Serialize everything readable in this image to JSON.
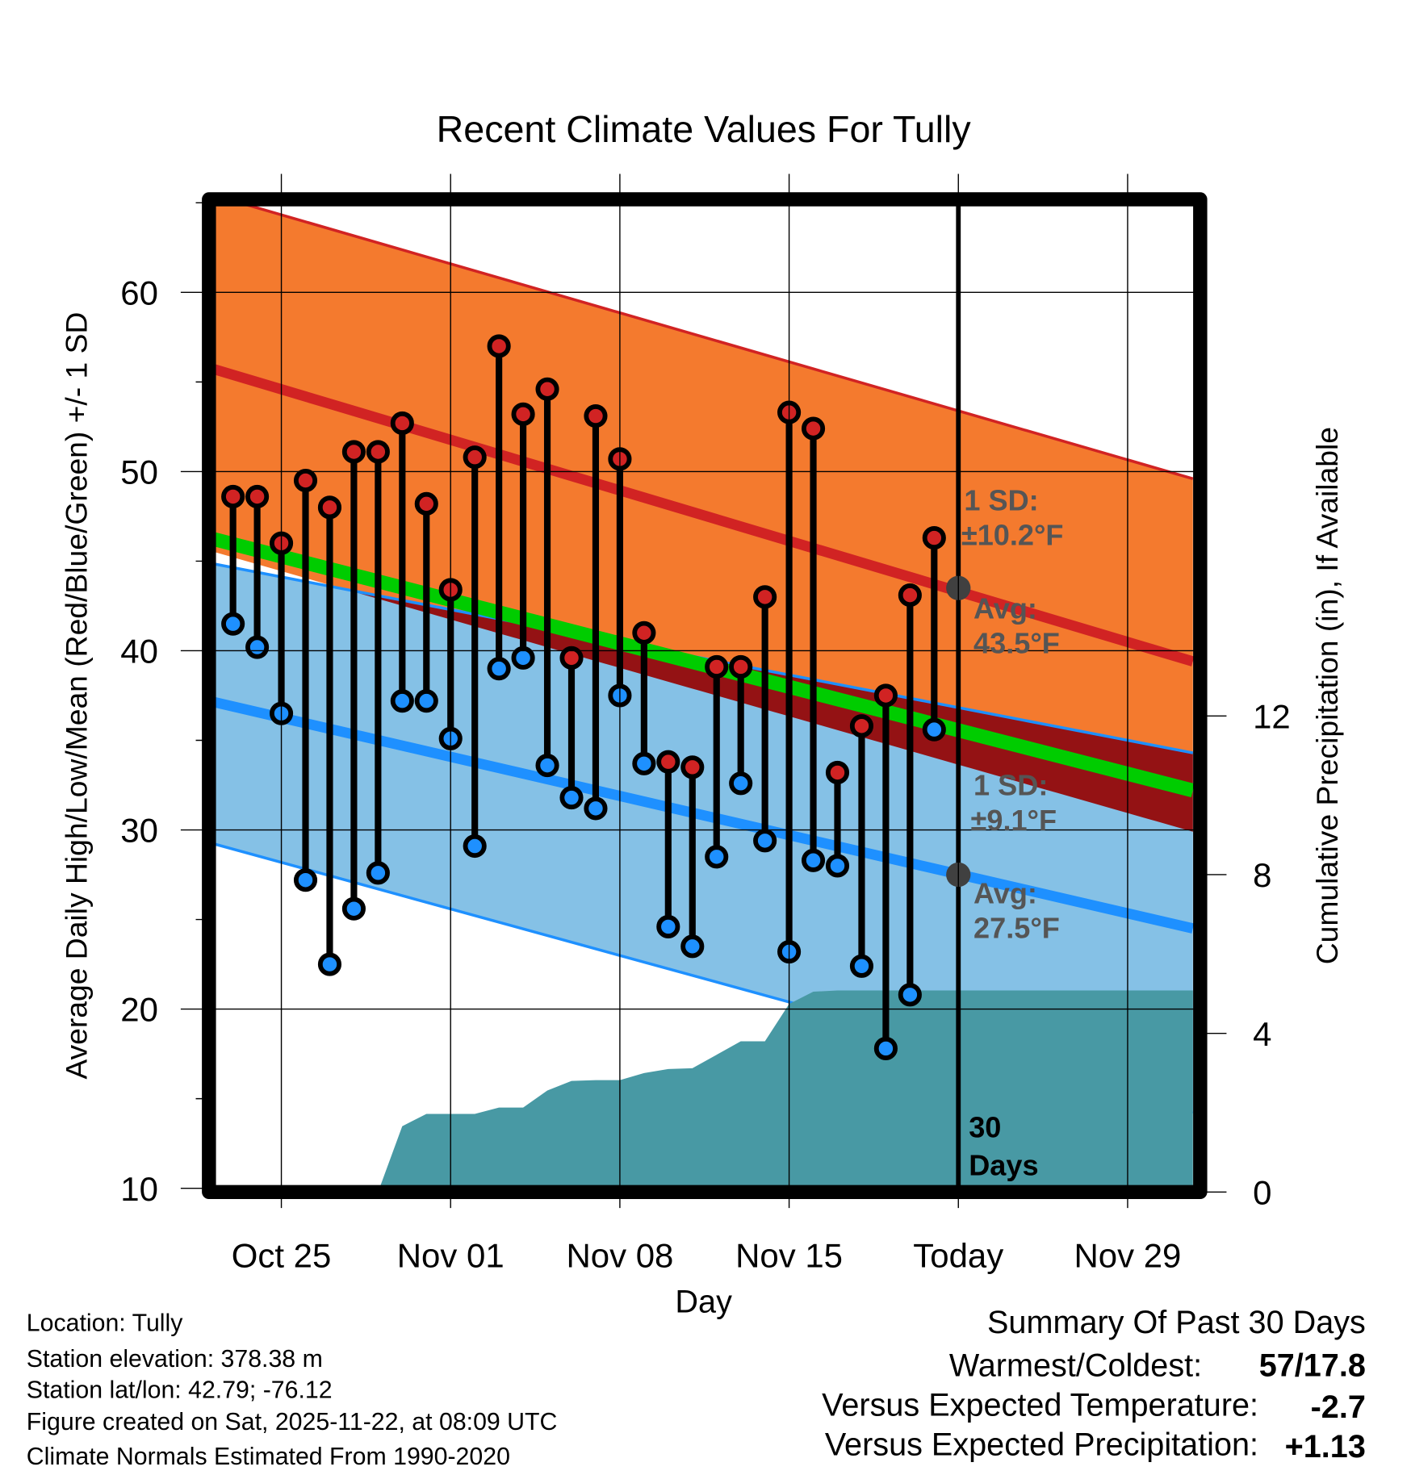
{
  "chart_data": {
    "type": "line",
    "title": "Recent Climate Values For Tully",
    "xlabel": "Day",
    "ylabel": "Average Daily High/Low/Mean (Red/Blue/Green) +/- 1 SD",
    "y2label": "Cumulative Precipitation (in), If Available",
    "x_units": "days relative to Oct 25",
    "xlim": [
      -3,
      37.7
    ],
    "ylim": [
      10,
      65.2
    ],
    "y2lim": [
      0,
      13
    ],
    "x_ticks": [
      {
        "x": 0,
        "label": "Oct 25"
      },
      {
        "x": 7,
        "label": "Nov 01"
      },
      {
        "x": 14,
        "label": "Nov 08"
      },
      {
        "x": 21,
        "label": "Nov 15"
      },
      {
        "x": 28,
        "label": "Today"
      },
      {
        "x": 35,
        "label": "Nov 29"
      }
    ],
    "y_ticks": [
      "10",
      "20",
      "30",
      "40",
      "50",
      "60"
    ],
    "y2_ticks": [
      "0",
      "4",
      "8",
      "12"
    ],
    "grid": true,
    "days": [
      -2,
      -1,
      0,
      1,
      2,
      3,
      4,
      5,
      6,
      7,
      8,
      9,
      10,
      11,
      12,
      13,
      14,
      15,
      16,
      17,
      18,
      19,
      20,
      21,
      22,
      23,
      24,
      25,
      26,
      27
    ],
    "highs": [
      48.6,
      48.6,
      46.0,
      49.5,
      48.0,
      51.1,
      51.1,
      52.7,
      48.2,
      43.4,
      50.8,
      57.0,
      53.2,
      54.6,
      39.6,
      53.1,
      50.7,
      41.0,
      33.8,
      33.5,
      39.1,
      39.1,
      43.0,
      53.3,
      52.4,
      33.2,
      35.8,
      37.5,
      43.1,
      46.3
    ],
    "lows": [
      41.5,
      40.2,
      36.5,
      27.2,
      22.5,
      25.6,
      27.6,
      37.2,
      37.2,
      35.1,
      29.1,
      39.0,
      39.6,
      33.6,
      31.8,
      31.2,
      37.5,
      33.7,
      24.6,
      23.5,
      28.5,
      32.6,
      29.4,
      23.2,
      28.3,
      28.0,
      22.4,
      17.8,
      20.8,
      35.6
    ],
    "precip_cumulative": [
      0,
      0,
      0,
      0,
      0,
      0,
      0,
      1.66,
      1.97,
      1.97,
      1.97,
      2.13,
      2.13,
      2.56,
      2.8,
      2.82,
      2.82,
      3.0,
      3.1,
      3.12,
      3.46,
      3.8,
      3.8,
      4.74,
      5.05,
      5.08,
      5.08,
      5.08,
      5.08,
      5.08
    ],
    "normals_at_xlim": {
      "high_upper": [
        65.5,
        49.6
      ],
      "high_mean": [
        55.8,
        39.4
      ],
      "high_lower": [
        45.6,
        29.9
      ],
      "mean": [
        46.3,
        32.2
      ],
      "low_upper": [
        44.9,
        34.3
      ],
      "low_mean": [
        37.2,
        24.5
      ],
      "low_lower": [
        29.3,
        14.2
      ]
    },
    "today_markers": {
      "avg_high": 43.5,
      "avg_low": 27.5
    },
    "annotations": {
      "high_sd_label": "1 SD:",
      "high_sd_value": "±10.2°F",
      "high_avg_label": "Avg:",
      "high_avg_value": "43.5°F",
      "low_sd_label": "1 SD:",
      "low_sd_value": "±9.1°F",
      "low_avg_label": "Avg:",
      "low_avg_value": "27.5°F",
      "period_value": "30",
      "period_unit": "Days"
    },
    "colors": {
      "high_band": "#f47a2e",
      "high_line": "#d12323",
      "low_band": "#85c1e6",
      "low_line": "#1e90ff",
      "mean_line": "#00cc00",
      "overlap": "#941214",
      "precip": "#4899a4",
      "high_dot": "#d12323",
      "low_dot": "#1e90ff",
      "avg_dot": "#404040"
    }
  },
  "footer": {
    "location": "Location: Tully",
    "elevation": "Station elevation: 378.38 m",
    "latlon": "Station lat/lon: 42.79; -76.12",
    "created": "Figure created on Sat, 2025-11-22, at 08:09 UTC",
    "normals": "Climate Normals Estimated From 1990-2020"
  },
  "summary": {
    "title": "Summary Of Past 30 Days",
    "warmest_label": "Warmest/Coldest:",
    "warmest_value": "57/17.8",
    "temp_label": "Versus Expected Temperature:",
    "temp_value": "-2.7",
    "temp_color": "#1e90ff",
    "precip_label": "Versus Expected Precipitation:",
    "precip_value": "+1.13",
    "precip_color": "#00cc00"
  }
}
